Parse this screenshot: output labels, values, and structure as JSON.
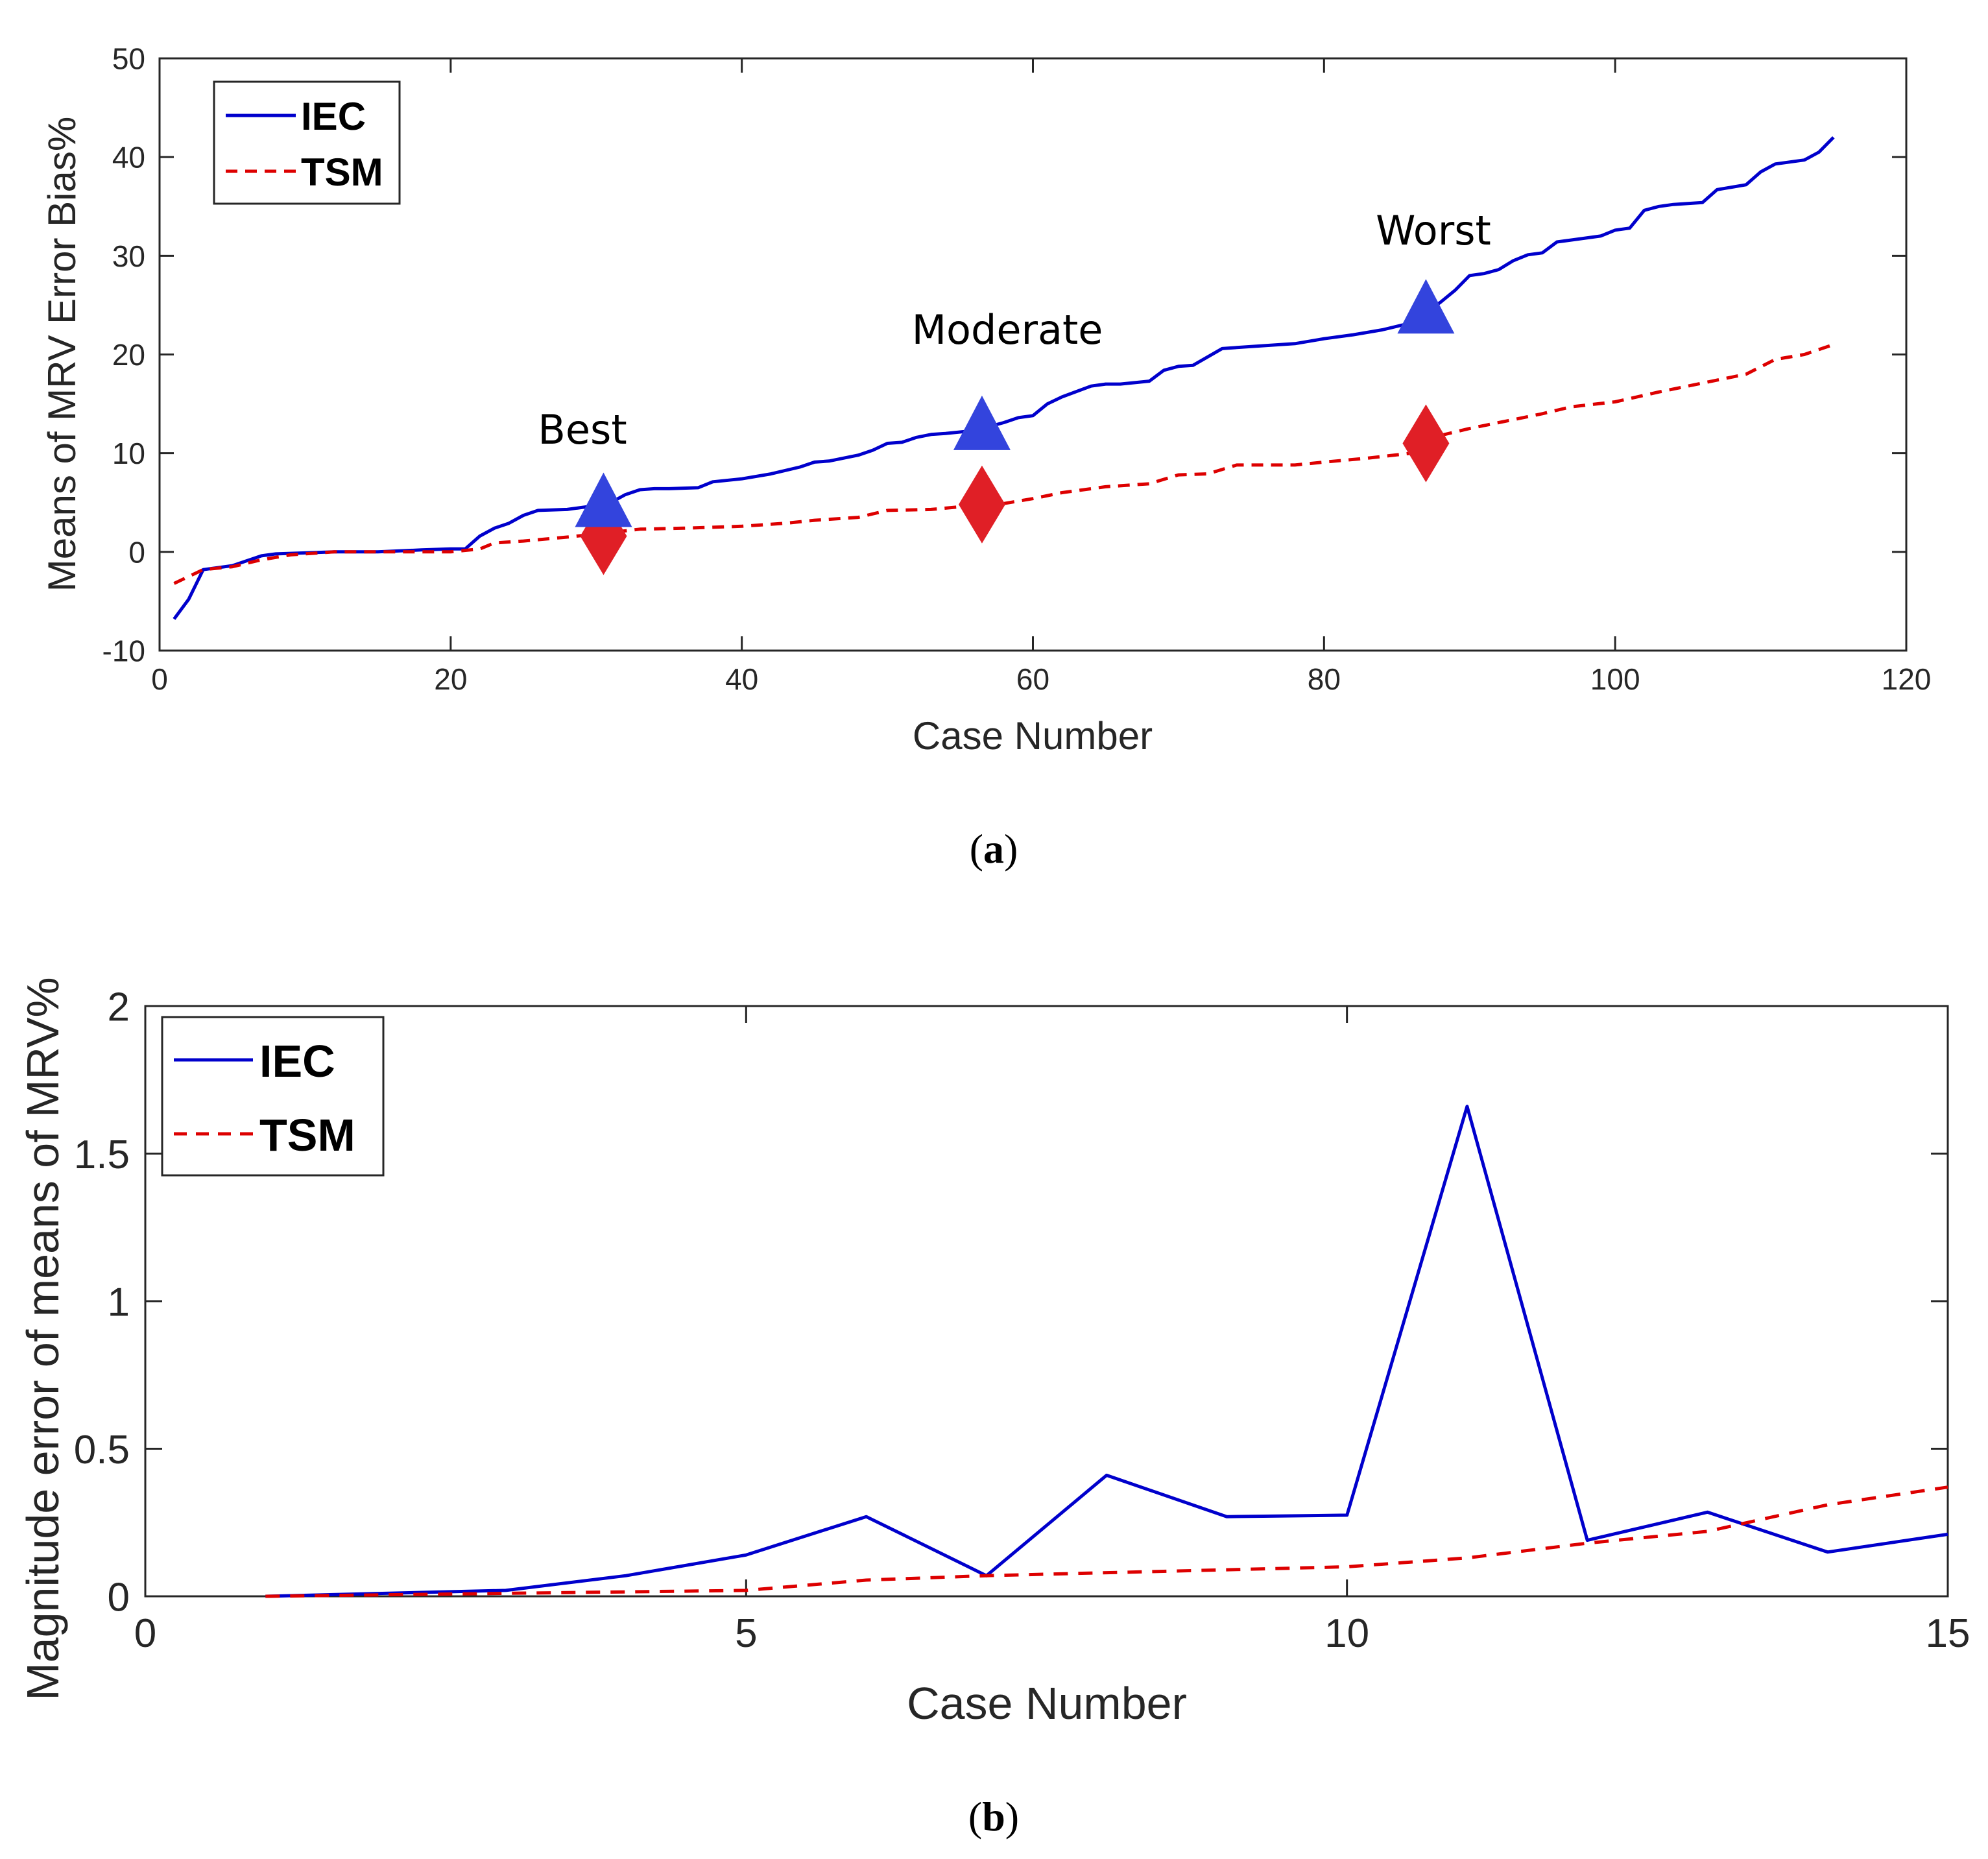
{
  "chart_data": [
    {
      "panel": "a",
      "caption_letter": "a",
      "type": "line",
      "xlabel": "Case Number",
      "ylabel": "Means of MRV Error Bias%",
      "xlim": [
        0,
        120
      ],
      "ylim": [
        -10,
        50
      ],
      "xticks": [
        0,
        20,
        40,
        60,
        80,
        100,
        120
      ],
      "yticks": [
        -10,
        0,
        10,
        20,
        30,
        40,
        50
      ],
      "legend": {
        "placement": "top-left",
        "entries": [
          "IEC",
          "TSM"
        ]
      },
      "series": [
        {
          "name": "IEC",
          "color": "#0000cc",
          "style": "solid",
          "x": [
            1,
            2,
            3,
            5,
            6,
            7,
            8,
            10,
            12,
            15,
            18,
            20,
            21,
            22,
            23,
            24,
            25,
            26,
            28,
            30,
            31,
            32,
            33,
            34,
            35,
            37,
            38,
            40,
            42,
            44,
            45,
            46,
            48,
            49,
            50,
            51,
            52,
            53,
            54,
            56,
            58,
            59,
            60,
            61,
            62,
            64,
            65,
            66,
            68,
            69,
            70,
            71,
            73,
            74,
            75,
            77,
            78,
            80,
            82,
            84,
            86,
            88,
            89,
            90,
            91,
            92,
            93,
            94,
            95,
            96,
            97,
            99,
            100,
            101,
            102,
            103,
            104,
            106,
            107,
            109,
            110,
            111,
            113,
            114,
            115
          ],
          "y": [
            -6.8,
            -4.8,
            -1.8,
            -1.4,
            -0.9,
            -0.4,
            -0.2,
            -0.1,
            0,
            0,
            0.2,
            0.3,
            0.3,
            1.6,
            2.4,
            2.9,
            3.7,
            4.2,
            4.3,
            4.7,
            5.0,
            5.8,
            6.3,
            6.4,
            6.4,
            6.5,
            7.1,
            7.4,
            7.9,
            8.6,
            9.1,
            9.2,
            9.8,
            10.3,
            11.0,
            11.1,
            11.6,
            11.9,
            12.0,
            12.3,
            13.1,
            13.6,
            13.8,
            15.0,
            15.7,
            16.8,
            17.0,
            17.0,
            17.3,
            18.4,
            18.8,
            18.9,
            20.6,
            20.7,
            20.8,
            21.0,
            21.1,
            21.6,
            22.0,
            22.5,
            23.2,
            25.3,
            26.5,
            28.0,
            28.2,
            28.6,
            29.5,
            30.1,
            30.3,
            31.4,
            31.6,
            32.0,
            32.6,
            32.8,
            34.6,
            35.0,
            35.2,
            35.4,
            36.7,
            37.2,
            38.5,
            39.3,
            39.7,
            40.5,
            42.0
          ]
        },
        {
          "name": "TSM",
          "color": "#dd0000",
          "style": "dashed",
          "x": [
            1,
            3,
            5,
            7,
            9,
            12,
            15,
            18,
            20,
            22,
            23,
            25,
            28,
            30,
            33,
            36,
            40,
            43,
            45,
            48,
            50,
            53,
            56,
            58,
            60,
            62,
            65,
            68,
            70,
            72,
            74,
            78,
            80,
            83,
            86,
            88,
            90,
            92,
            95,
            97,
            100,
            103,
            106,
            109,
            111,
            113,
            115
          ],
          "y": [
            -3.2,
            -1.8,
            -1.5,
            -0.8,
            -0.3,
            0,
            0,
            0,
            0,
            0.3,
            0.9,
            1.1,
            1.5,
            1.8,
            2.3,
            2.4,
            2.6,
            2.9,
            3.2,
            3.5,
            4.2,
            4.3,
            4.7,
            4.9,
            5.4,
            6.0,
            6.6,
            6.9,
            7.8,
            7.9,
            8.8,
            8.8,
            9.1,
            9.5,
            10.0,
            11.8,
            12.5,
            13.1,
            14.0,
            14.7,
            15.2,
            16.2,
            17.1,
            18.0,
            19.5,
            20.0,
            21.0
          ]
        }
      ],
      "markers": [
        {
          "label": "Best",
          "x": 30.5,
          "iec": 5.0,
          "tsm": 1.6
        },
        {
          "label": "Moderate",
          "x": 56.5,
          "iec": 12.8,
          "tsm": 4.8
        },
        {
          "label": "Worst",
          "x": 87,
          "iec": 24.6,
          "tsm": 11.0
        }
      ]
    },
    {
      "panel": "b",
      "caption_letter": "b",
      "type": "line",
      "xlabel": "Case Number",
      "ylabel": "Magnitude error of means of MRV%",
      "xlim": [
        0,
        15
      ],
      "ylim": [
        0,
        2
      ],
      "xticks": [
        0,
        5,
        10,
        15
      ],
      "yticks": [
        0,
        0.5,
        1,
        1.5,
        2
      ],
      "legend": {
        "placement": "top-left",
        "entries": [
          "IEC",
          "TSM"
        ]
      },
      "series": [
        {
          "name": "IEC",
          "color": "#0000cc",
          "style": "solid",
          "x": [
            1,
            2,
            3,
            4,
            5,
            6,
            7,
            8,
            9,
            10,
            11,
            12,
            13,
            14,
            15
          ],
          "y": [
            0.0,
            0.01,
            0.02,
            0.07,
            0.14,
            0.27,
            0.07,
            0.41,
            0.27,
            0.275,
            1.66,
            0.19,
            0.285,
            0.15,
            0.21
          ]
        },
        {
          "name": "TSM",
          "color": "#dd0000",
          "style": "dashed",
          "x": [
            1,
            2,
            3,
            4,
            5,
            6,
            7,
            8,
            9,
            10,
            11,
            12,
            13,
            14,
            15
          ],
          "y": [
            0.0,
            0.005,
            0.01,
            0.015,
            0.02,
            0.055,
            0.07,
            0.08,
            0.09,
            0.1,
            0.13,
            0.18,
            0.22,
            0.31,
            0.37
          ]
        }
      ]
    }
  ],
  "colors": {
    "iec_line": "#0000cc",
    "tsm_line": "#dd0000",
    "triangle": "#3344dd",
    "diamond": "#e01f26",
    "axes": "#262626"
  }
}
